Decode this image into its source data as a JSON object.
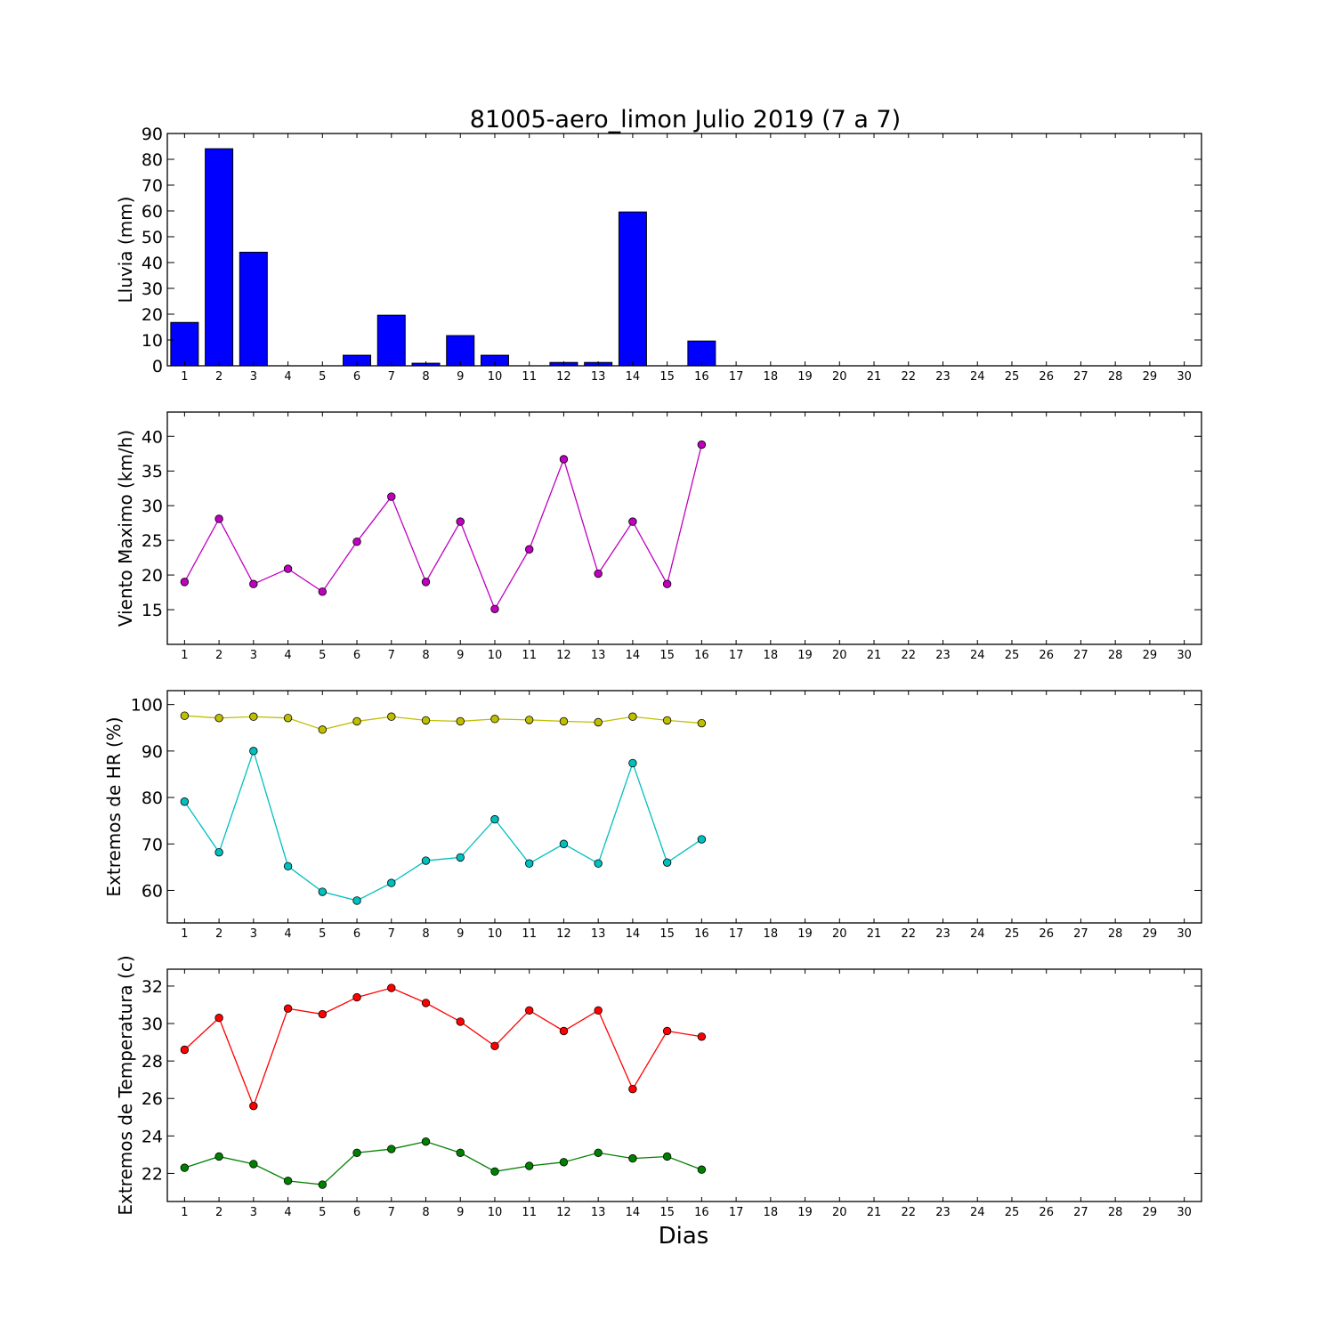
{
  "title": "81005-aero_limon Julio 2019  (7 a 7)",
  "xlabel": "Dias",
  "days": [
    1,
    2,
    3,
    4,
    5,
    6,
    7,
    8,
    9,
    10,
    11,
    12,
    13,
    14,
    15,
    16,
    17,
    18,
    19,
    20,
    21,
    22,
    23,
    24,
    25,
    26,
    27,
    28,
    29,
    30
  ],
  "chart_data": [
    {
      "type": "bar",
      "ylabel": "Lluvia (mm)",
      "xlim": [
        0.5,
        30.5
      ],
      "ylim": [
        0,
        90
      ],
      "yticks": [
        0,
        10,
        20,
        30,
        40,
        50,
        60,
        70,
        80,
        90
      ],
      "categories": [
        1,
        2,
        3,
        4,
        5,
        6,
        7,
        8,
        9,
        10,
        11,
        12,
        13,
        14,
        15,
        16,
        17,
        18,
        19,
        20,
        21,
        22,
        23,
        24,
        25,
        26,
        27,
        28,
        29,
        30
      ],
      "values": [
        16.8,
        84.1,
        44.0,
        0,
        0,
        4.1,
        19.6,
        1.0,
        11.7,
        4.1,
        0,
        1.3,
        1.3,
        59.6,
        0,
        9.6,
        0,
        0,
        0,
        0,
        0,
        0,
        0,
        0,
        0,
        0,
        0,
        0,
        0,
        0
      ],
      "color": "#0000ff"
    },
    {
      "type": "line",
      "ylabel": "Viento Maximo (km/h)",
      "xlim": [
        0.5,
        30.5
      ],
      "ylim": [
        10,
        43.5
      ],
      "yticks": [
        15,
        20,
        25,
        30,
        35,
        40
      ],
      "series": [
        {
          "color": "#bf00bf",
          "x": [
            1,
            2,
            3,
            4,
            5,
            6,
            7,
            8,
            9,
            10,
            11,
            12,
            13,
            14,
            15,
            16
          ],
          "values": [
            19.0,
            28.1,
            18.7,
            20.9,
            17.6,
            24.8,
            31.3,
            19.0,
            27.7,
            15.1,
            23.7,
            36.7,
            20.2,
            27.7,
            18.7,
            38.8
          ]
        }
      ]
    },
    {
      "type": "line",
      "ylabel": "Extremos de HR (%)",
      "xlim": [
        0.5,
        30.5
      ],
      "ylim": [
        53,
        103
      ],
      "yticks": [
        60,
        70,
        80,
        90,
        100
      ],
      "series": [
        {
          "color": "#bfbf00",
          "x": [
            1,
            2,
            3,
            4,
            5,
            6,
            7,
            8,
            9,
            10,
            11,
            12,
            13,
            14,
            15,
            16
          ],
          "values": [
            97.6,
            97.1,
            97.4,
            97.1,
            94.6,
            96.4,
            97.4,
            96.6,
            96.4,
            96.9,
            96.7,
            96.4,
            96.2,
            97.4,
            96.6,
            96.0
          ]
        },
        {
          "color": "#00bfbf",
          "x": [
            1,
            2,
            3,
            4,
            5,
            6,
            7,
            8,
            9,
            10,
            11,
            12,
            13,
            14,
            15,
            16
          ],
          "values": [
            79.1,
            68.2,
            90.0,
            65.2,
            59.7,
            57.8,
            61.6,
            66.4,
            67.1,
            75.3,
            65.8,
            70.0,
            65.8,
            87.4,
            66.0,
            71.0
          ]
        }
      ]
    },
    {
      "type": "line",
      "ylabel": "Extremos de Temperatura (c)",
      "xlim": [
        0.5,
        30.5
      ],
      "ylim": [
        20.5,
        32.9
      ],
      "yticks": [
        22,
        24,
        26,
        28,
        30,
        32
      ],
      "series": [
        {
          "color": "#ff0000",
          "x": [
            1,
            2,
            3,
            4,
            5,
            6,
            7,
            8,
            9,
            10,
            11,
            12,
            13,
            14,
            15,
            16
          ],
          "values": [
            28.6,
            30.3,
            25.6,
            30.8,
            30.5,
            31.4,
            31.9,
            31.1,
            30.1,
            28.8,
            30.7,
            29.6,
            30.7,
            26.5,
            29.6,
            29.3
          ]
        },
        {
          "color": "#008000",
          "x": [
            1,
            2,
            3,
            4,
            5,
            6,
            7,
            8,
            9,
            10,
            11,
            12,
            13,
            14,
            15,
            16
          ],
          "values": [
            22.3,
            22.9,
            22.5,
            21.6,
            21.4,
            23.1,
            23.3,
            23.7,
            23.1,
            22.1,
            22.4,
            22.6,
            23.1,
            22.8,
            22.9,
            22.2
          ]
        }
      ]
    }
  ]
}
